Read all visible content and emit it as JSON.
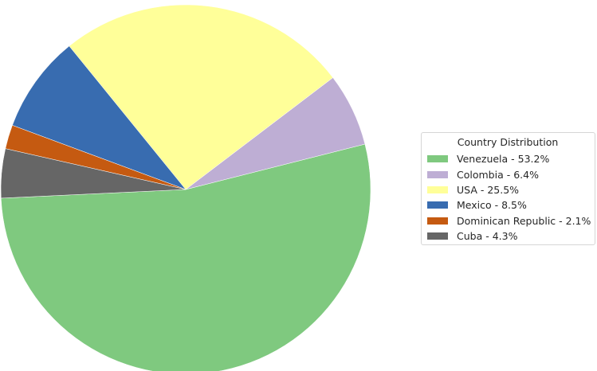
{
  "chart_data": {
    "type": "pie",
    "title": "",
    "slices": [
      {
        "label": "Venezuela",
        "percent": 53.2,
        "color": "#7fc97f"
      },
      {
        "label": "Colombia",
        "percent": 6.4,
        "color": "#beaed4"
      },
      {
        "label": "USA",
        "percent": 25.5,
        "color": "#ffff99"
      },
      {
        "label": "Mexico",
        "percent": 8.5,
        "color": "#386cb0"
      },
      {
        "label": "Dominican Republic",
        "percent": 2.1,
        "color": "#c55a11"
      },
      {
        "label": "Cuba",
        "percent": 4.3,
        "color": "#666666"
      }
    ],
    "legend": {
      "title": "Country Distribution",
      "placement": "right",
      "entries": [
        "Venezuela - 53.2%",
        "Colombia - 6.4%",
        "USA - 25.5%",
        "Mexico - 8.5%",
        "Dominican Republic - 2.1%",
        "Cuba - 4.3%"
      ]
    }
  }
}
